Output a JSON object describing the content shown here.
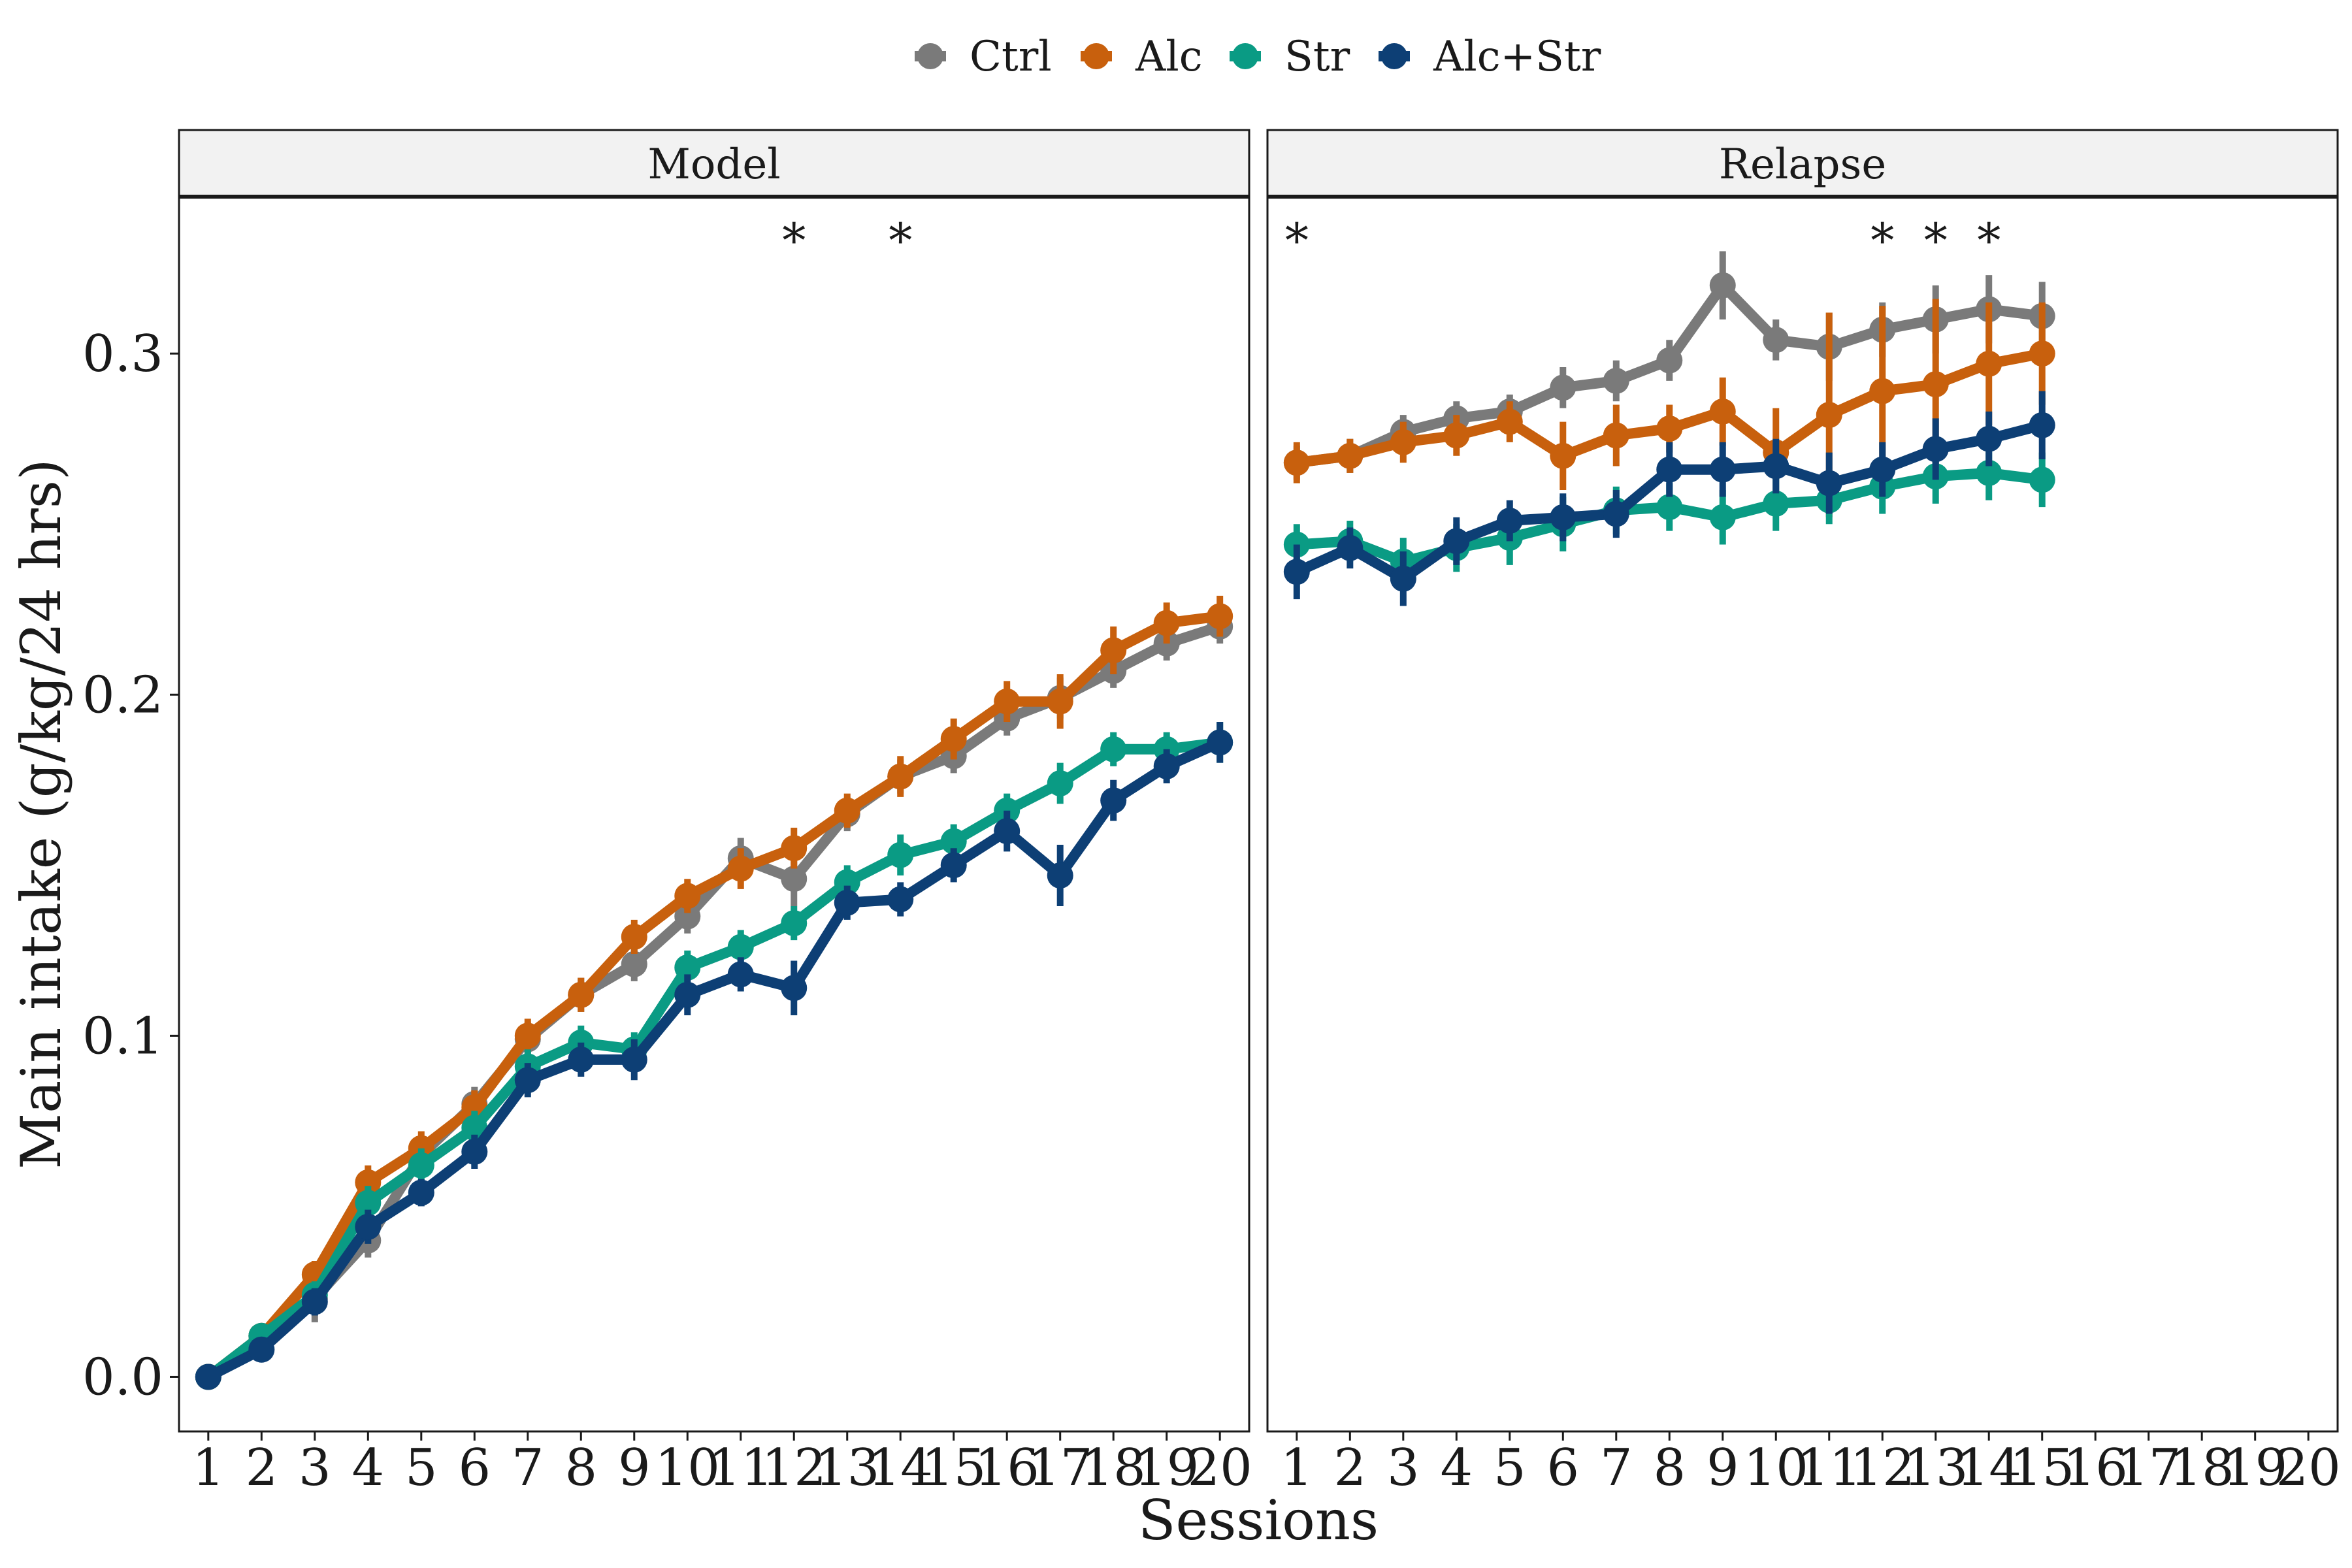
{
  "chart_data": {
    "type": "line",
    "ylabel": "Main intake (g/kg/24 hrs)",
    "xlabel": "Sessions",
    "ylim": [
      -0.016,
      0.346
    ],
    "yticks": [
      0.0,
      0.1,
      0.2,
      0.3
    ],
    "ytick_labels": [
      "0.0",
      "0.1",
      "0.2",
      "0.3"
    ],
    "xticks": [
      1,
      2,
      3,
      4,
      5,
      6,
      7,
      8,
      9,
      10,
      11,
      12,
      13,
      14,
      15,
      16,
      17,
      18,
      19,
      20
    ],
    "xtick_labels": [
      "1",
      "2",
      "3",
      "4",
      "5",
      "6",
      "7",
      "8",
      "9",
      "10",
      "11",
      "12",
      "13",
      "14",
      "15",
      "16",
      "17",
      "18",
      "19",
      "20"
    ],
    "xlim": [
      0.45,
      20.55
    ],
    "legend": {
      "placement": "top"
    },
    "colors": {
      "Ctrl": "#7a7a7a",
      "Alc": "#c8600d",
      "Str": "#0a9b84",
      "Alc+Str": "#0d3f75"
    },
    "panels": [
      {
        "title": "Model",
        "annotations": [
          {
            "x": 12,
            "text": "*"
          },
          {
            "x": 14,
            "text": "*"
          }
        ],
        "series": [
          {
            "name": "Ctrl",
            "x": [
              1,
              2,
              3,
              4,
              5,
              6,
              7,
              8,
              9,
              10,
              11,
              12,
              13,
              14,
              15,
              16,
              17,
              18,
              19,
              20
            ],
            "values": [
              0.0,
              0.012,
              0.023,
              0.04,
              0.065,
              0.08,
              0.099,
              0.112,
              0.121,
              0.135,
              0.152,
              0.146,
              0.165,
              0.176,
              0.182,
              0.193,
              0.199,
              0.207,
              0.215,
              0.22
            ],
            "errors": [
              0.002,
              0.003,
              0.007,
              0.005,
              0.005,
              0.005,
              0.005,
              0.005,
              0.005,
              0.005,
              0.006,
              0.008,
              0.005,
              0.005,
              0.005,
              0.005,
              0.006,
              0.005,
              0.005,
              0.005
            ]
          },
          {
            "name": "Alc",
            "x": [
              1,
              2,
              3,
              4,
              5,
              6,
              7,
              8,
              9,
              10,
              11,
              12,
              13,
              14,
              15,
              16,
              17,
              18,
              19,
              20
            ],
            "values": [
              0.0,
              0.012,
              0.03,
              0.057,
              0.067,
              0.079,
              0.1,
              0.112,
              0.129,
              0.141,
              0.149,
              0.155,
              0.166,
              0.176,
              0.187,
              0.198,
              0.198,
              0.213,
              0.221,
              0.223
            ],
            "errors": [
              0.002,
              0.003,
              0.004,
              0.005,
              0.005,
              0.005,
              0.005,
              0.005,
              0.005,
              0.005,
              0.006,
              0.006,
              0.005,
              0.006,
              0.006,
              0.006,
              0.008,
              0.007,
              0.006,
              0.006
            ]
          },
          {
            "name": "Str",
            "x": [
              1,
              2,
              3,
              4,
              5,
              6,
              7,
              8,
              9,
              10,
              11,
              12,
              13,
              14,
              15,
              16,
              17,
              18,
              19,
              20
            ],
            "values": [
              0.0,
              0.012,
              0.024,
              0.051,
              0.062,
              0.073,
              0.091,
              0.098,
              0.096,
              0.12,
              0.126,
              0.133,
              0.145,
              0.153,
              0.157,
              0.166,
              0.174,
              0.184,
              0.184,
              0.186
            ],
            "errors": [
              0.002,
              0.003,
              0.004,
              0.005,
              0.005,
              0.005,
              0.005,
              0.005,
              0.005,
              0.005,
              0.005,
              0.005,
              0.005,
              0.006,
              0.005,
              0.005,
              0.006,
              0.005,
              0.005,
              0.006
            ]
          },
          {
            "name": "Alc+Str",
            "x": [
              1,
              2,
              3,
              4,
              5,
              6,
              7,
              8,
              9,
              10,
              11,
              12,
              13,
              14,
              15,
              16,
              17,
              18,
              19,
              20
            ],
            "values": [
              0.0,
              0.008,
              0.022,
              0.044,
              0.054,
              0.066,
              0.087,
              0.093,
              0.093,
              0.112,
              0.118,
              0.114,
              0.139,
              0.14,
              0.15,
              0.16,
              0.147,
              0.169,
              0.179,
              0.186
            ],
            "errors": [
              0.002,
              0.003,
              0.004,
              0.005,
              0.004,
              0.005,
              0.005,
              0.005,
              0.006,
              0.006,
              0.005,
              0.008,
              0.005,
              0.005,
              0.005,
              0.006,
              0.009,
              0.006,
              0.005,
              0.006
            ]
          }
        ]
      },
      {
        "title": "Relapse",
        "annotations": [
          {
            "x": 1,
            "text": "*"
          },
          {
            "x": 12,
            "text": "*"
          },
          {
            "x": 13,
            "text": "*"
          },
          {
            "x": 14,
            "text": "*"
          }
        ],
        "series": [
          {
            "name": "Ctrl",
            "x": [
              1,
              2,
              3,
              4,
              5,
              6,
              7,
              8,
              9,
              10,
              11,
              12,
              13,
              14,
              15
            ],
            "values": [
              0.268,
              0.27,
              0.277,
              0.281,
              0.283,
              0.29,
              0.292,
              0.298,
              0.32,
              0.304,
              0.302,
              0.307,
              0.31,
              0.313,
              0.311
            ],
            "errors": [
              0.005,
              0.005,
              0.005,
              0.005,
              0.005,
              0.006,
              0.006,
              0.006,
              0.01,
              0.006,
              0.01,
              0.008,
              0.01,
              0.01,
              0.01
            ]
          },
          {
            "name": "Alc",
            "x": [
              1,
              2,
              3,
              4,
              5,
              6,
              7,
              8,
              9,
              10,
              11,
              12,
              13,
              14,
              15
            ],
            "values": [
              0.268,
              0.27,
              0.274,
              0.276,
              0.28,
              0.27,
              0.276,
              0.278,
              0.283,
              0.271,
              0.282,
              0.289,
              0.291,
              0.297,
              0.3
            ],
            "errors": [
              0.006,
              0.005,
              0.006,
              0.006,
              0.006,
              0.01,
              0.009,
              0.007,
              0.01,
              0.013,
              0.03,
              0.025,
              0.025,
              0.018,
              0.015
            ]
          },
          {
            "name": "Str",
            "x": [
              1,
              2,
              3,
              4,
              5,
              6,
              7,
              8,
              9,
              10,
              11,
              12,
              13,
              14,
              15
            ],
            "values": [
              0.244,
              0.245,
              0.239,
              0.243,
              0.246,
              0.25,
              0.254,
              0.255,
              0.252,
              0.256,
              0.257,
              0.261,
              0.264,
              0.265,
              0.263
            ],
            "errors": [
              0.006,
              0.006,
              0.007,
              0.007,
              0.008,
              0.008,
              0.007,
              0.007,
              0.008,
              0.008,
              0.007,
              0.008,
              0.008,
              0.008,
              0.008
            ]
          },
          {
            "name": "Alc+Str",
            "x": [
              1,
              2,
              3,
              4,
              5,
              6,
              7,
              8,
              9,
              10,
              11,
              12,
              13,
              14,
              15
            ],
            "values": [
              0.236,
              0.243,
              0.234,
              0.245,
              0.251,
              0.252,
              0.253,
              0.266,
              0.266,
              0.267,
              0.262,
              0.266,
              0.272,
              0.275,
              0.279
            ],
            "errors": [
              0.008,
              0.006,
              0.008,
              0.007,
              0.006,
              0.007,
              0.007,
              0.008,
              0.008,
              0.008,
              0.009,
              0.008,
              0.009,
              0.008,
              0.01
            ]
          }
        ]
      }
    ]
  }
}
